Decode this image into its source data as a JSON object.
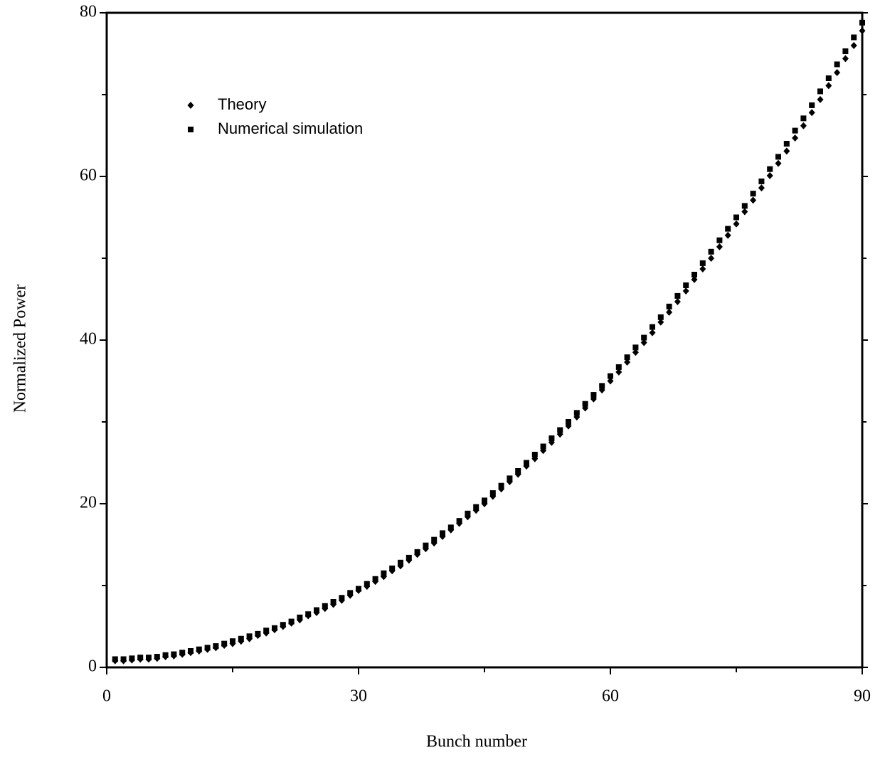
{
  "chart_data": {
    "type": "scatter",
    "xlabel": "Bunch number",
    "ylabel": "Normalized Power",
    "x": [
      1,
      2,
      3,
      4,
      5,
      6,
      7,
      8,
      9,
      10,
      11,
      12,
      13,
      14,
      15,
      16,
      17,
      18,
      19,
      20,
      21,
      22,
      23,
      24,
      25,
      26,
      27,
      28,
      29,
      30,
      31,
      32,
      33,
      34,
      35,
      36,
      37,
      38,
      39,
      40,
      41,
      42,
      43,
      44,
      45,
      46,
      47,
      48,
      49,
      50,
      51,
      52,
      53,
      54,
      55,
      56,
      57,
      58,
      59,
      60,
      61,
      62,
      63,
      64,
      65,
      66,
      67,
      68,
      69,
      70,
      71,
      72,
      73,
      74,
      75,
      76,
      77,
      78,
      79,
      80,
      81,
      82,
      83,
      84,
      85,
      86,
      87,
      88,
      89,
      90
    ],
    "series": [
      {
        "name": "Theory",
        "color": "#000000",
        "marker": "diamond",
        "values": [
          0.8,
          0.8,
          0.9,
          1.0,
          1.0,
          1.1,
          1.3,
          1.4,
          1.6,
          1.8,
          2.0,
          2.2,
          2.4,
          2.7,
          2.9,
          3.2,
          3.5,
          3.9,
          4.2,
          4.6,
          5.0,
          5.4,
          5.8,
          6.3,
          6.7,
          7.2,
          7.7,
          8.2,
          8.8,
          9.4,
          9.9,
          10.5,
          11.1,
          11.8,
          12.4,
          13.1,
          13.8,
          14.5,
          15.2,
          16.0,
          16.8,
          17.6,
          18.4,
          19.2,
          20.0,
          20.9,
          21.8,
          22.7,
          23.6,
          24.6,
          25.5,
          26.5,
          27.5,
          28.5,
          29.5,
          30.6,
          31.7,
          32.8,
          33.9,
          35.0,
          36.1,
          37.3,
          38.5,
          39.7,
          40.9,
          42.2,
          43.4,
          44.7,
          46.0,
          47.4,
          48.7,
          50.0,
          51.4,
          52.8,
          54.2,
          55.7,
          57.1,
          58.6,
          60.1,
          61.6,
          63.1,
          64.7,
          66.2,
          67.8,
          69.4,
          71.1,
          72.7,
          74.4,
          76.0,
          77.8
        ]
      },
      {
        "name": "Numerical simulation",
        "color": "#000000",
        "marker": "square",
        "values": [
          1.0,
          1.0,
          1.1,
          1.2,
          1.2,
          1.3,
          1.5,
          1.6,
          1.8,
          2.0,
          2.2,
          2.4,
          2.6,
          2.9,
          3.2,
          3.5,
          3.8,
          4.1,
          4.5,
          4.8,
          5.2,
          5.6,
          6.1,
          6.5,
          7.0,
          7.5,
          8.0,
          8.5,
          9.1,
          9.6,
          10.2,
          10.8,
          11.5,
          12.1,
          12.8,
          13.4,
          14.1,
          14.9,
          15.6,
          16.4,
          17.1,
          17.9,
          18.8,
          19.6,
          20.4,
          21.3,
          22.2,
          23.1,
          24.0,
          25.0,
          26.0,
          27.0,
          28.0,
          29.0,
          30.0,
          31.1,
          32.2,
          33.3,
          34.4,
          35.6,
          36.7,
          37.9,
          39.1,
          40.3,
          41.6,
          42.8,
          44.1,
          45.4,
          46.7,
          48.0,
          49.4,
          50.8,
          52.2,
          53.6,
          55.0,
          56.4,
          57.9,
          59.4,
          60.9,
          62.4,
          64.0,
          65.6,
          67.1,
          68.7,
          70.4,
          72.0,
          73.7,
          75.3,
          77.0,
          78.8
        ]
      }
    ],
    "xlim": [
      0,
      90
    ],
    "xticks": [
      0,
      30,
      60,
      90
    ],
    "xminor": [
      15,
      45,
      75
    ],
    "ylim": [
      0,
      80
    ],
    "yticks": [
      0,
      20,
      40,
      60,
      80
    ],
    "yminor": [
      10,
      30,
      50,
      70
    ],
    "grid": false,
    "legend": "upper left"
  }
}
